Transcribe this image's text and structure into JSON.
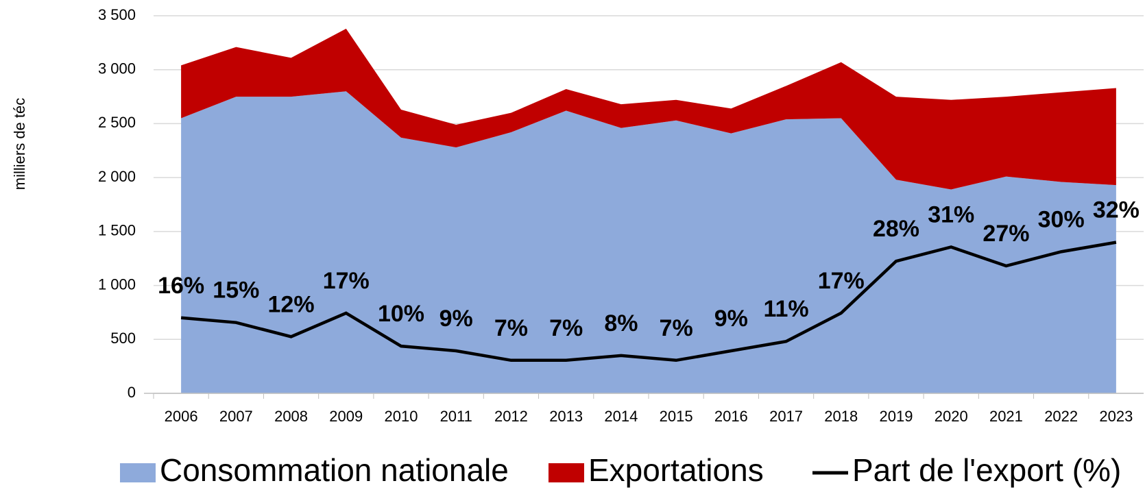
{
  "chart_data": {
    "type": "stacked-area-line",
    "y_label": "milliers de téc",
    "categories": [
      "2006",
      "2007",
      "2008",
      "2009",
      "2010",
      "2011",
      "2012",
      "2013",
      "2014",
      "2015",
      "2016",
      "2017",
      "2018",
      "2019",
      "2020",
      "2021",
      "2022",
      "2023"
    ],
    "series": [
      {
        "name": "Consommation nationale",
        "color": "#8eaadb",
        "type": "area",
        "values": [
          2550,
          2750,
          2750,
          2800,
          2370,
          2280,
          2420,
          2620,
          2460,
          2530,
          2410,
          2540,
          2550,
          1980,
          1890,
          2010,
          1960,
          1930
        ]
      },
      {
        "name": "Exportations",
        "color": "#c00000",
        "type": "area",
        "values": [
          490,
          460,
          360,
          580,
          260,
          210,
          180,
          200,
          220,
          190,
          230,
          310,
          520,
          770,
          830,
          740,
          830,
          900
        ]
      },
      {
        "name": "Part de l'export (%)",
        "color": "#000000",
        "type": "line",
        "axis": "y2",
        "values": [
          16,
          15,
          12,
          17,
          10,
          9,
          7,
          7,
          8,
          7,
          9,
          11,
          17,
          28,
          31,
          27,
          30,
          32
        ],
        "value_labels": [
          "16%",
          "15%",
          "12%",
          "17%",
          "10%",
          "9%",
          "7%",
          "7%",
          "8%",
          "7%",
          "9%",
          "11%",
          "17%",
          "28%",
          "31%",
          "27%",
          "30%",
          "32%"
        ]
      }
    ],
    "ylim": [
      0,
      3500
    ],
    "yticks": [
      0,
      500,
      {
        "value": 1000,
        "label": "1 000"
      },
      {
        "value": 1500,
        "label": "1 500"
      },
      {
        "value": 2000,
        "label": "2 000"
      },
      {
        "value": 2500,
        "label": "2 500"
      },
      {
        "value": 3000,
        "label": "3 000"
      },
      {
        "value": 3500,
        "label": "3 500"
      }
    ],
    "y2lim": [
      0,
      80
    ],
    "grid": true,
    "legend": "bottom"
  }
}
